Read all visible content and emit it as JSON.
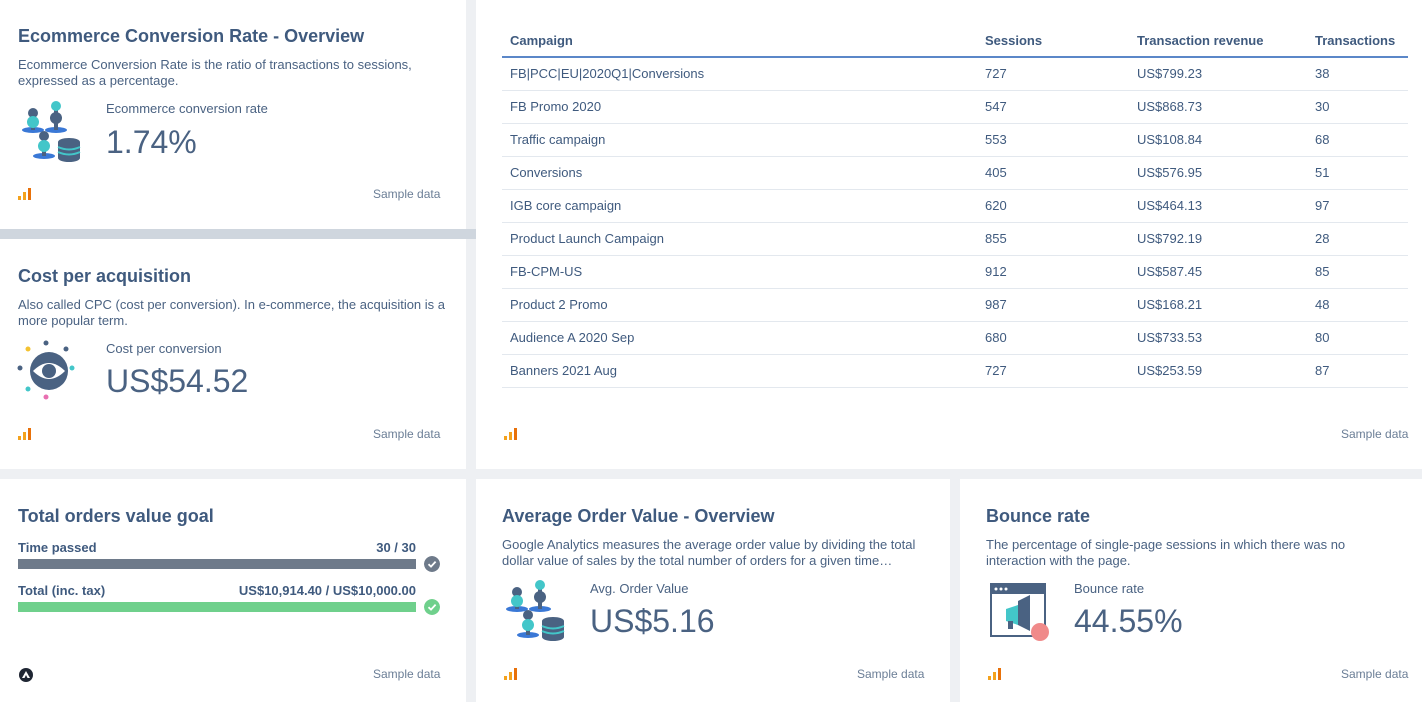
{
  "conversion_card": {
    "title": "Ecommerce Conversion Rate - Overview",
    "description": "Ecommerce Conversion Rate is the ratio of transactions to sessions, expressed as a percentage.",
    "metric_label": "Ecommerce conversion rate",
    "metric_value": "1.74%",
    "footer": "Sample data"
  },
  "cpa_card": {
    "title": "Cost per acquisition",
    "description": "Also called CPC (cost per conversion). In e-commerce, the acquisition is a more popular term.",
    "metric_label": "Cost per conversion",
    "metric_value": "US$54.52",
    "footer": "Sample data"
  },
  "campaign_table": {
    "columns": [
      "Campaign",
      "Sessions",
      "Transaction revenue",
      "Transactions"
    ],
    "rows": [
      [
        "FB|PCC|EU|2020Q1|Conversions",
        "727",
        "US$799.23",
        "38"
      ],
      [
        "FB Promo 2020",
        "547",
        "US$868.73",
        "30"
      ],
      [
        "Traffic campaign",
        "553",
        "US$108.84",
        "68"
      ],
      [
        "Conversions",
        "405",
        "US$576.95",
        "51"
      ],
      [
        "IGB core campaign",
        "620",
        "US$464.13",
        "97"
      ],
      [
        "Product Launch Campaign",
        "855",
        "US$792.19",
        "28"
      ],
      [
        "FB-CPM-US",
        "912",
        "US$587.45",
        "85"
      ],
      [
        "Product 2 Promo",
        "987",
        "US$168.21",
        "48"
      ],
      [
        "Audience A 2020 Sep",
        "680",
        "US$733.53",
        "80"
      ],
      [
        "Banners 2021 Aug",
        "727",
        "US$253.59",
        "87"
      ]
    ],
    "footer": "Sample data"
  },
  "goal_card": {
    "title": "Total orders value goal",
    "time_label": "Time passed",
    "time_value": "30 / 30",
    "time_progress": 1.0,
    "total_label": "Total (inc. tax)",
    "total_value": "US$10,914.40 / US$10,000.00",
    "total_progress": 1.0,
    "footer": "Sample data"
  },
  "aov_card": {
    "title": "Average Order Value - Overview",
    "description": "Google Analytics measures the average order value by dividing the total dollar value of sales by the total number of orders for a given time…",
    "metric_label": "Avg. Order Value",
    "metric_value": "US$5.16",
    "footer": "Sample data"
  },
  "bounce_card": {
    "title": "Bounce rate",
    "description": "The percentage of single-page sessions in which there was no interaction with the page.",
    "metric_label": "Bounce rate",
    "metric_value": "44.55%",
    "footer": "Sample data"
  },
  "colors": {
    "accent_blue": "#5b87c8",
    "goal_gray": "#6e7a8a",
    "goal_green": "#6fd08c",
    "analytics_orange": "#f4a21d"
  }
}
